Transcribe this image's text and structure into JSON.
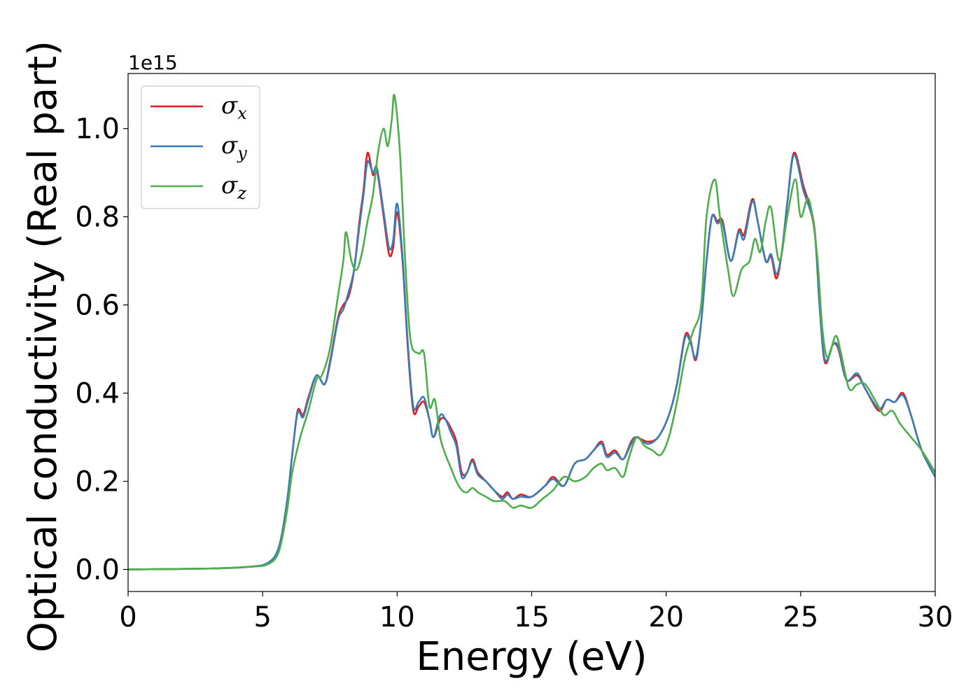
{
  "chart_data": {
    "type": "line",
    "xlabel": "Energy (eV)",
    "ylabel": "Optical conductivity (Real part)",
    "y_offset_label": "1e15",
    "xlim": [
      0,
      30
    ],
    "ylim": [
      -0.05,
      1.125
    ],
    "x_ticks": [
      0,
      5,
      10,
      15,
      20,
      25,
      30
    ],
    "y_ticks": [
      0.0,
      0.2,
      0.4,
      0.6,
      0.8,
      1.0
    ],
    "grid": false,
    "legend_position": "top-left",
    "series": [
      {
        "name": "σx",
        "color": "#e41a1c",
        "points": [
          [
            0,
            0
          ],
          [
            3,
            0.002
          ],
          [
            4.5,
            0.006
          ],
          [
            5.2,
            0.015
          ],
          [
            5.6,
            0.05
          ],
          [
            5.9,
            0.15
          ],
          [
            6.1,
            0.26
          ],
          [
            6.3,
            0.36
          ],
          [
            6.5,
            0.35
          ],
          [
            6.7,
            0.39
          ],
          [
            7,
            0.44
          ],
          [
            7.3,
            0.42
          ],
          [
            7.5,
            0.47
          ],
          [
            7.8,
            0.57
          ],
          [
            8,
            0.6
          ],
          [
            8.2,
            0.62
          ],
          [
            8.4,
            0.68
          ],
          [
            8.6,
            0.79
          ],
          [
            8.75,
            0.86
          ],
          [
            8.9,
            0.945
          ],
          [
            9.1,
            0.895
          ],
          [
            9.25,
            0.905
          ],
          [
            9.5,
            0.8
          ],
          [
            9.7,
            0.715
          ],
          [
            9.85,
            0.73
          ],
          [
            10,
            0.81
          ],
          [
            10.2,
            0.7
          ],
          [
            10.4,
            0.5
          ],
          [
            10.6,
            0.36
          ],
          [
            10.8,
            0.37
          ],
          [
            11,
            0.38
          ],
          [
            11.2,
            0.34
          ],
          [
            11.35,
            0.3
          ],
          [
            11.6,
            0.34
          ],
          [
            11.8,
            0.34
          ],
          [
            12,
            0.32
          ],
          [
            12.2,
            0.29
          ],
          [
            12.4,
            0.22
          ],
          [
            12.6,
            0.22
          ],
          [
            12.8,
            0.25
          ],
          [
            13,
            0.22
          ],
          [
            13.3,
            0.2
          ],
          [
            13.6,
            0.18
          ],
          [
            13.9,
            0.165
          ],
          [
            14.1,
            0.175
          ],
          [
            14.3,
            0.16
          ],
          [
            14.6,
            0.17
          ],
          [
            15,
            0.165
          ],
          [
            15.5,
            0.19
          ],
          [
            15.8,
            0.21
          ],
          [
            16.2,
            0.19
          ],
          [
            16.6,
            0.24
          ],
          [
            17,
            0.25
          ],
          [
            17.3,
            0.27
          ],
          [
            17.6,
            0.29
          ],
          [
            17.8,
            0.26
          ],
          [
            18.1,
            0.27
          ],
          [
            18.4,
            0.25
          ],
          [
            18.7,
            0.29
          ],
          [
            18.9,
            0.3
          ],
          [
            19.3,
            0.29
          ],
          [
            19.7,
            0.3
          ],
          [
            20.1,
            0.35
          ],
          [
            20.4,
            0.42
          ],
          [
            20.7,
            0.53
          ],
          [
            20.9,
            0.52
          ],
          [
            21.1,
            0.475
          ],
          [
            21.3,
            0.56
          ],
          [
            21.5,
            0.7
          ],
          [
            21.7,
            0.8
          ],
          [
            21.9,
            0.79
          ],
          [
            22.1,
            0.79
          ],
          [
            22.4,
            0.7
          ],
          [
            22.7,
            0.77
          ],
          [
            22.9,
            0.76
          ],
          [
            23.2,
            0.84
          ],
          [
            23.4,
            0.79
          ],
          [
            23.7,
            0.7
          ],
          [
            23.9,
            0.71
          ],
          [
            24.1,
            0.66
          ],
          [
            24.3,
            0.72
          ],
          [
            24.5,
            0.83
          ],
          [
            24.75,
            0.945
          ],
          [
            25.1,
            0.87
          ],
          [
            25.5,
            0.78
          ],
          [
            25.7,
            0.6
          ],
          [
            25.9,
            0.47
          ],
          [
            26.2,
            0.51
          ],
          [
            26.4,
            0.5
          ],
          [
            26.7,
            0.43
          ],
          [
            27.1,
            0.44
          ],
          [
            27.4,
            0.41
          ],
          [
            27.9,
            0.36
          ],
          [
            28.2,
            0.385
          ],
          [
            28.5,
            0.38
          ],
          [
            28.8,
            0.4
          ],
          [
            29.1,
            0.35
          ],
          [
            29.5,
            0.27
          ],
          [
            30,
            0.21
          ]
        ]
      },
      {
        "name": "σy",
        "color": "#377eb8",
        "points": [
          [
            0,
            0
          ],
          [
            3,
            0.002
          ],
          [
            4.5,
            0.006
          ],
          [
            5.2,
            0.015
          ],
          [
            5.6,
            0.05
          ],
          [
            5.9,
            0.15
          ],
          [
            6.1,
            0.26
          ],
          [
            6.3,
            0.355
          ],
          [
            6.5,
            0.345
          ],
          [
            6.7,
            0.385
          ],
          [
            7,
            0.44
          ],
          [
            7.3,
            0.42
          ],
          [
            7.5,
            0.465
          ],
          [
            7.8,
            0.565
          ],
          [
            8,
            0.59
          ],
          [
            8.2,
            0.63
          ],
          [
            8.4,
            0.68
          ],
          [
            8.6,
            0.78
          ],
          [
            8.75,
            0.85
          ],
          [
            8.9,
            0.925
          ],
          [
            9.1,
            0.9
          ],
          [
            9.25,
            0.91
          ],
          [
            9.5,
            0.81
          ],
          [
            9.7,
            0.73
          ],
          [
            9.85,
            0.745
          ],
          [
            10,
            0.83
          ],
          [
            10.2,
            0.71
          ],
          [
            10.4,
            0.51
          ],
          [
            10.6,
            0.37
          ],
          [
            10.8,
            0.38
          ],
          [
            11,
            0.39
          ],
          [
            11.2,
            0.34
          ],
          [
            11.35,
            0.3
          ],
          [
            11.6,
            0.35
          ],
          [
            11.8,
            0.34
          ],
          [
            12,
            0.31
          ],
          [
            12.2,
            0.28
          ],
          [
            12.4,
            0.21
          ],
          [
            12.6,
            0.22
          ],
          [
            12.8,
            0.245
          ],
          [
            13,
            0.215
          ],
          [
            13.3,
            0.2
          ],
          [
            13.6,
            0.18
          ],
          [
            13.9,
            0.16
          ],
          [
            14.1,
            0.17
          ],
          [
            14.3,
            0.16
          ],
          [
            14.6,
            0.165
          ],
          [
            15,
            0.165
          ],
          [
            15.5,
            0.19
          ],
          [
            15.8,
            0.205
          ],
          [
            16.2,
            0.19
          ],
          [
            16.6,
            0.24
          ],
          [
            17,
            0.25
          ],
          [
            17.3,
            0.27
          ],
          [
            17.6,
            0.285
          ],
          [
            17.8,
            0.255
          ],
          [
            18.1,
            0.265
          ],
          [
            18.4,
            0.25
          ],
          [
            18.7,
            0.285
          ],
          [
            18.9,
            0.3
          ],
          [
            19.3,
            0.285
          ],
          [
            19.7,
            0.3
          ],
          [
            20.1,
            0.35
          ],
          [
            20.4,
            0.42
          ],
          [
            20.7,
            0.525
          ],
          [
            20.9,
            0.515
          ],
          [
            21.1,
            0.48
          ],
          [
            21.3,
            0.56
          ],
          [
            21.5,
            0.7
          ],
          [
            21.7,
            0.8
          ],
          [
            21.9,
            0.785
          ],
          [
            22.1,
            0.785
          ],
          [
            22.4,
            0.7
          ],
          [
            22.7,
            0.765
          ],
          [
            22.9,
            0.75
          ],
          [
            23.2,
            0.835
          ],
          [
            23.4,
            0.79
          ],
          [
            23.7,
            0.7
          ],
          [
            23.9,
            0.715
          ],
          [
            24.1,
            0.67
          ],
          [
            24.3,
            0.72
          ],
          [
            24.5,
            0.83
          ],
          [
            24.75,
            0.94
          ],
          [
            25.1,
            0.86
          ],
          [
            25.5,
            0.775
          ],
          [
            25.7,
            0.6
          ],
          [
            25.9,
            0.475
          ],
          [
            26.2,
            0.51
          ],
          [
            26.4,
            0.505
          ],
          [
            26.7,
            0.43
          ],
          [
            27.1,
            0.445
          ],
          [
            27.4,
            0.41
          ],
          [
            27.9,
            0.365
          ],
          [
            28.2,
            0.385
          ],
          [
            28.5,
            0.38
          ],
          [
            28.8,
            0.395
          ],
          [
            29.1,
            0.35
          ],
          [
            29.5,
            0.27
          ],
          [
            30,
            0.21
          ]
        ]
      },
      {
        "name": "σz",
        "color": "#4daf4a",
        "points": [
          [
            0,
            0
          ],
          [
            3,
            0.002
          ],
          [
            4.5,
            0.006
          ],
          [
            5.2,
            0.012
          ],
          [
            5.6,
            0.04
          ],
          [
            5.9,
            0.13
          ],
          [
            6.1,
            0.22
          ],
          [
            6.4,
            0.3
          ],
          [
            6.7,
            0.36
          ],
          [
            7,
            0.43
          ],
          [
            7.2,
            0.44
          ],
          [
            7.5,
            0.5
          ],
          [
            7.8,
            0.62
          ],
          [
            8,
            0.7
          ],
          [
            8.1,
            0.765
          ],
          [
            8.3,
            0.7
          ],
          [
            8.5,
            0.68
          ],
          [
            8.7,
            0.72
          ],
          [
            8.9,
            0.79
          ],
          [
            9.1,
            0.85
          ],
          [
            9.3,
            0.95
          ],
          [
            9.5,
            1.0
          ],
          [
            9.65,
            0.96
          ],
          [
            9.8,
            1.02
          ],
          [
            9.9,
            1.075
          ],
          [
            10.1,
            0.95
          ],
          [
            10.3,
            0.7
          ],
          [
            10.5,
            0.52
          ],
          [
            10.8,
            0.49
          ],
          [
            11,
            0.49
          ],
          [
            11.2,
            0.37
          ],
          [
            11.4,
            0.385
          ],
          [
            11.6,
            0.3
          ],
          [
            11.8,
            0.26
          ],
          [
            12,
            0.23
          ],
          [
            12.2,
            0.2
          ],
          [
            12.4,
            0.18
          ],
          [
            12.6,
            0.175
          ],
          [
            12.8,
            0.185
          ],
          [
            13,
            0.175
          ],
          [
            13.3,
            0.165
          ],
          [
            13.6,
            0.155
          ],
          [
            14,
            0.155
          ],
          [
            14.3,
            0.14
          ],
          [
            14.6,
            0.145
          ],
          [
            15,
            0.14
          ],
          [
            15.4,
            0.16
          ],
          [
            15.8,
            0.18
          ],
          [
            16.2,
            0.21
          ],
          [
            16.6,
            0.2
          ],
          [
            17,
            0.21
          ],
          [
            17.3,
            0.23
          ],
          [
            17.6,
            0.24
          ],
          [
            17.8,
            0.225
          ],
          [
            18.1,
            0.23
          ],
          [
            18.4,
            0.21
          ],
          [
            18.6,
            0.25
          ],
          [
            18.9,
            0.3
          ],
          [
            19.2,
            0.28
          ],
          [
            19.5,
            0.27
          ],
          [
            19.8,
            0.26
          ],
          [
            20.1,
            0.3
          ],
          [
            20.4,
            0.38
          ],
          [
            20.7,
            0.48
          ],
          [
            21,
            0.54
          ],
          [
            21.3,
            0.6
          ],
          [
            21.5,
            0.8
          ],
          [
            21.8,
            0.885
          ],
          [
            22,
            0.8
          ],
          [
            22.3,
            0.68
          ],
          [
            22.5,
            0.62
          ],
          [
            22.8,
            0.68
          ],
          [
            23.1,
            0.7
          ],
          [
            23.3,
            0.75
          ],
          [
            23.5,
            0.72
          ],
          [
            23.7,
            0.79
          ],
          [
            23.9,
            0.82
          ],
          [
            24.2,
            0.7
          ],
          [
            24.5,
            0.8
          ],
          [
            24.8,
            0.885
          ],
          [
            25,
            0.8
          ],
          [
            25.3,
            0.84
          ],
          [
            25.6,
            0.72
          ],
          [
            25.8,
            0.55
          ],
          [
            26,
            0.48
          ],
          [
            26.3,
            0.53
          ],
          [
            26.5,
            0.49
          ],
          [
            26.8,
            0.41
          ],
          [
            27.1,
            0.42
          ],
          [
            27.4,
            0.42
          ],
          [
            27.8,
            0.38
          ],
          [
            28.1,
            0.35
          ],
          [
            28.4,
            0.36
          ],
          [
            28.7,
            0.33
          ],
          [
            29.1,
            0.3
          ],
          [
            29.5,
            0.27
          ],
          [
            30,
            0.22
          ]
        ]
      }
    ]
  }
}
